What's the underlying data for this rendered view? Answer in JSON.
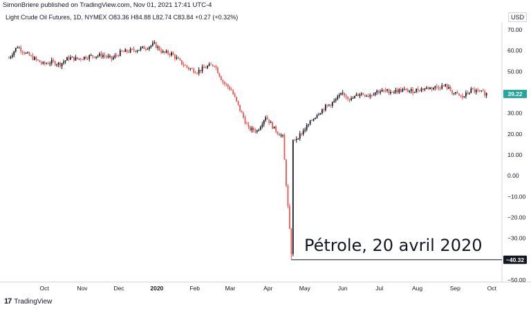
{
  "header": {
    "publisher_line": "SimonBriere published on TradingView.com, Nov 01, 2021 17:41 UTC-4"
  },
  "legend": {
    "text": "Light Crude Oil Futures, 1D, NYMEX  O83.36  H84.88  L82.74  C83.84  +0.27 (+0.32%)"
  },
  "currency": "USD",
  "footer": {
    "brand": "TradingView",
    "logo_glyph": "17"
  },
  "annotation": {
    "text": "Pétrole, 20 avril 2020"
  },
  "colors": {
    "up": "#26a69a",
    "down": "#ef5350",
    "candle": "#131722",
    "last_tag": "#26a69a"
  },
  "chart_data": {
    "type": "candlestick",
    "title": "",
    "xlabel": "",
    "ylabel": "",
    "ylim": [
      -50,
      70
    ],
    "y_ticks": [
      "70.00",
      "60.00",
      "50.00",
      "40.00",
      "30.00",
      "20.00",
      "10.00",
      "0.00",
      "−10.00",
      "−20.00",
      "−30.00",
      "−40.00",
      "−50.00"
    ],
    "y_tick_values": [
      70,
      60,
      50,
      40,
      30,
      20,
      10,
      0,
      -10,
      -20,
      -30,
      -40,
      -50
    ],
    "x_ticks": [
      "Oct",
      "Nov",
      "Dec",
      "2020",
      "Feb",
      "Mar",
      "Apr",
      "May",
      "Jun",
      "Jul",
      "Aug",
      "Sep",
      "Oct"
    ],
    "last_price_label": "39.22",
    "last_price": 39.22,
    "min_price_label": "−40.32",
    "min_price": -40.32,
    "series": [
      {
        "date": "2019-09-02",
        "close": 56.5
      },
      {
        "date": "2019-09-09",
        "close": 62.0
      },
      {
        "date": "2019-09-16",
        "close": 58.5
      },
      {
        "date": "2019-09-23",
        "close": 56.0
      },
      {
        "date": "2019-09-30",
        "close": 53.5
      },
      {
        "date": "2019-10-07",
        "close": 54.5
      },
      {
        "date": "2019-10-14",
        "close": 53.5
      },
      {
        "date": "2019-10-21",
        "close": 56.5
      },
      {
        "date": "2019-10-28",
        "close": 56.0
      },
      {
        "date": "2019-11-04",
        "close": 57.0
      },
      {
        "date": "2019-11-11",
        "close": 57.5
      },
      {
        "date": "2019-11-18",
        "close": 57.8
      },
      {
        "date": "2019-11-25",
        "close": 56.0
      },
      {
        "date": "2019-12-02",
        "close": 59.0
      },
      {
        "date": "2019-12-09",
        "close": 59.8
      },
      {
        "date": "2019-12-16",
        "close": 60.5
      },
      {
        "date": "2019-12-23",
        "close": 61.5
      },
      {
        "date": "2019-12-30",
        "close": 63.0
      },
      {
        "date": "2020-01-06",
        "close": 59.0
      },
      {
        "date": "2020-01-13",
        "close": 58.5
      },
      {
        "date": "2020-01-20",
        "close": 54.5
      },
      {
        "date": "2020-01-27",
        "close": 51.5
      },
      {
        "date": "2020-02-03",
        "close": 50.0
      },
      {
        "date": "2020-02-10",
        "close": 52.0
      },
      {
        "date": "2020-02-17",
        "close": 53.5
      },
      {
        "date": "2020-02-24",
        "close": 45.0
      },
      {
        "date": "2020-03-02",
        "close": 41.0
      },
      {
        "date": "2020-03-09",
        "close": 31.5
      },
      {
        "date": "2020-03-16",
        "close": 22.5
      },
      {
        "date": "2020-03-23",
        "close": 21.5
      },
      {
        "date": "2020-03-30",
        "close": 28.5
      },
      {
        "date": "2020-04-06",
        "close": 22.5
      },
      {
        "date": "2020-04-13",
        "close": 18.5
      },
      {
        "date": "2020-04-20",
        "close": -37.6
      },
      {
        "date": "2020-04-27",
        "close": 19.5
      },
      {
        "date": "2020-05-04",
        "close": 24.5
      },
      {
        "date": "2020-05-11",
        "close": 29.5
      },
      {
        "date": "2020-05-18",
        "close": 33.0
      },
      {
        "date": "2020-05-25",
        "close": 35.5
      },
      {
        "date": "2020-06-01",
        "close": 39.5
      },
      {
        "date": "2020-06-08",
        "close": 36.5
      },
      {
        "date": "2020-06-15",
        "close": 39.5
      },
      {
        "date": "2020-06-22",
        "close": 38.5
      },
      {
        "date": "2020-06-29",
        "close": 40.5
      },
      {
        "date": "2020-07-06",
        "close": 40.5
      },
      {
        "date": "2020-07-13",
        "close": 40.5
      },
      {
        "date": "2020-07-20",
        "close": 41.0
      },
      {
        "date": "2020-07-27",
        "close": 40.5
      },
      {
        "date": "2020-08-03",
        "close": 41.5
      },
      {
        "date": "2020-08-10",
        "close": 42.0
      },
      {
        "date": "2020-08-17",
        "close": 42.5
      },
      {
        "date": "2020-08-24",
        "close": 43.0
      },
      {
        "date": "2020-08-31",
        "close": 39.5
      },
      {
        "date": "2020-09-07",
        "close": 37.5
      },
      {
        "date": "2020-09-14",
        "close": 41.0
      },
      {
        "date": "2020-09-21",
        "close": 40.0
      },
      {
        "date": "2020-09-28",
        "close": 39.22
      }
    ]
  }
}
